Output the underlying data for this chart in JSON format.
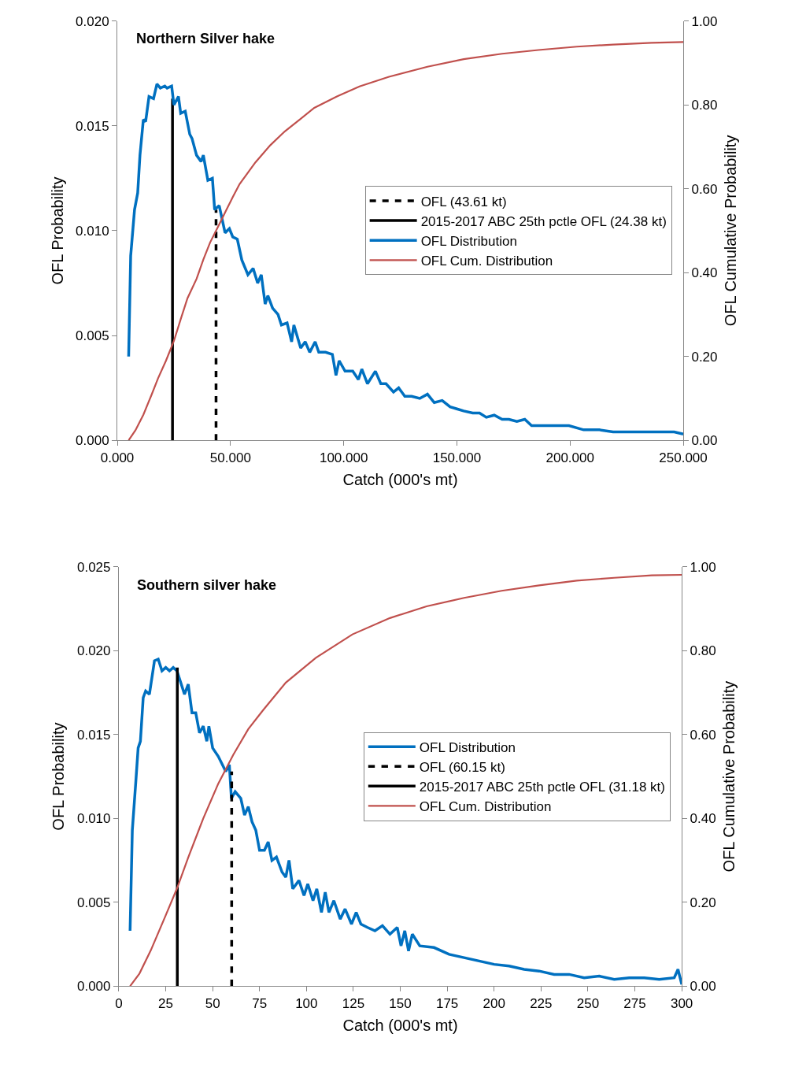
{
  "chart_data": [
    {
      "type": "line",
      "title": "Northern Silver hake",
      "xlabel": "Catch (000's mt)",
      "ylabel": "OFL Probability",
      "y2label": "OFL Cumulative Probability",
      "legend": "right",
      "marker": "none",
      "xlim": [
        0,
        250
      ],
      "xticks": [
        {
          "value": 0,
          "label": "0.000"
        },
        {
          "value": 50,
          "label": "50.000"
        },
        {
          "value": 100,
          "label": "100.000"
        },
        {
          "value": 150,
          "label": "150.000"
        },
        {
          "value": 200,
          "label": "200.000"
        },
        {
          "value": 250,
          "label": "250.000"
        }
      ],
      "ylim": [
        0,
        0.02
      ],
      "yticks": [
        {
          "value": 0,
          "label": "0.000"
        },
        {
          "value": 0.005,
          "label": "0.005"
        },
        {
          "value": 0.01,
          "label": "0.010"
        },
        {
          "value": 0.015,
          "label": "0.015"
        },
        {
          "value": 0.02,
          "label": "0.020"
        }
      ],
      "y2lim": [
        0,
        1
      ],
      "y2ticks": [
        {
          "value": 0,
          "label": "0.00"
        },
        {
          "value": 0.2,
          "label": "0.20"
        },
        {
          "value": 0.4,
          "label": "0.40"
        },
        {
          "value": 0.6,
          "label": "0.60"
        },
        {
          "value": 0.8,
          "label": "0.80"
        },
        {
          "value": 1,
          "label": "1.00"
        }
      ],
      "series": [
        {
          "name": "OFL (43.61 kt)",
          "color": "#000000",
          "line_style": "dashed",
          "x": [
            43.61,
            43.61
          ],
          "values": [
            0,
            0.011
          ]
        },
        {
          "name": "2015-2017 ABC 25th pctle OFL (24.38 kt)",
          "color": "#000000",
          "line_style": "solid",
          "x": [
            24.38,
            24.38
          ],
          "values": [
            0,
            0.0163
          ]
        },
        {
          "name": "OFL Distribution",
          "color": "#0070c0",
          "line_style": "solid",
          "x": [
            5,
            5.9,
            7.6,
            9,
            10,
            11.5,
            12.5,
            14,
            16,
            17.5,
            19,
            21,
            22,
            24,
            25,
            27,
            28,
            30,
            32,
            33,
            35,
            37,
            38,
            40,
            42,
            43,
            45,
            47.6,
            49.5,
            51,
            53,
            55,
            57.7,
            60,
            62,
            63.6,
            65.3,
            66.5,
            68.6,
            71,
            72.5,
            75,
            77,
            78,
            81,
            83,
            85,
            87.4,
            89,
            92,
            95,
            96.6,
            98,
            100.6,
            104,
            106.5,
            108,
            110.5,
            114,
            116.4,
            118.7,
            122,
            124.3,
            127,
            130,
            133.6,
            137,
            140,
            143.5,
            147,
            150,
            153,
            157,
            160,
            163,
            166.5,
            170,
            173,
            176.5,
            180,
            183,
            186,
            193,
            199.5,
            206,
            213,
            219,
            226,
            232.5,
            239,
            246,
            250
          ],
          "values": [
            0.004,
            0.0088,
            0.011,
            0.0118,
            0.0136,
            0.0153,
            0.0152,
            0.0164,
            0.0163,
            0.017,
            0.0168,
            0.0169,
            0.0168,
            0.0169,
            0.016,
            0.0164,
            0.0156,
            0.0157,
            0.0146,
            0.0144,
            0.0136,
            0.0133,
            0.0136,
            0.0124,
            0.0125,
            0.011,
            0.0112,
            0.0099,
            0.0101,
            0.0097,
            0.0096,
            0.0086,
            0.0079,
            0.0082,
            0.0075,
            0.0079,
            0.0065,
            0.0069,
            0.0063,
            0.006,
            0.0055,
            0.0056,
            0.0047,
            0.0055,
            0.0044,
            0.0047,
            0.0042,
            0.0047,
            0.0042,
            0.0042,
            0.0041,
            0.0031,
            0.0038,
            0.0033,
            0.0033,
            0.0029,
            0.0034,
            0.0027,
            0.0033,
            0.0027,
            0.0027,
            0.0023,
            0.0025,
            0.0021,
            0.0021,
            0.002,
            0.0022,
            0.0018,
            0.0019,
            0.0016,
            0.0015,
            0.0014,
            0.0013,
            0.0013,
            0.0011,
            0.0012,
            0.001,
            0.001,
            0.0009,
            0.001,
            0.0007,
            0.0007,
            0.0007,
            0.0007,
            0.0005,
            0.0005,
            0.0004,
            0.0004,
            0.0004,
            0.0004,
            0.0004,
            0.0003
          ]
        },
        {
          "name": "OFL Cum. Distribution",
          "color": "#c0504d",
          "line_style": "solid",
          "axis": "y2",
          "x": [
            5,
            8,
            11.5,
            15,
            18,
            21.5,
            25,
            28,
            31,
            35,
            38,
            41,
            45,
            48,
            51,
            54,
            61,
            67.6,
            74,
            81,
            87,
            97,
            107,
            120,
            137,
            153,
            170,
            186,
            203,
            219,
            236,
            250
          ],
          "values": [
            0,
            0.024,
            0.061,
            0.107,
            0.148,
            0.19,
            0.237,
            0.289,
            0.339,
            0.385,
            0.431,
            0.472,
            0.515,
            0.548,
            0.58,
            0.611,
            0.663,
            0.704,
            0.737,
            0.767,
            0.793,
            0.82,
            0.844,
            0.867,
            0.891,
            0.909,
            0.922,
            0.931,
            0.939,
            0.944,
            0.948,
            0.95
          ]
        }
      ]
    },
    {
      "type": "line",
      "title": "Southern silver hake",
      "xlabel": "Catch (000's mt)",
      "ylabel": "OFL Probability",
      "y2label": "OFL Cumulative Probability",
      "legend": "right",
      "marker": "none",
      "xlim": [
        0,
        300
      ],
      "xticks": [
        0,
        25,
        50,
        75,
        100,
        125,
        150,
        175,
        200,
        225,
        250,
        275,
        300
      ],
      "ylim": [
        0,
        0.025
      ],
      "yticks": [
        {
          "value": 0,
          "label": "0.000"
        },
        {
          "value": 0.005,
          "label": "0.005"
        },
        {
          "value": 0.01,
          "label": "0.010"
        },
        {
          "value": 0.015,
          "label": "0.015"
        },
        {
          "value": 0.02,
          "label": "0.020"
        },
        {
          "value": 0.025,
          "label": "0.025"
        }
      ],
      "y2lim": [
        0,
        1
      ],
      "y2ticks": [
        {
          "value": 0,
          "label": "0.00"
        },
        {
          "value": 0.2,
          "label": "0.20"
        },
        {
          "value": 0.4,
          "label": "0.40"
        },
        {
          "value": 0.6,
          "label": "0.60"
        },
        {
          "value": 0.8,
          "label": "0.80"
        },
        {
          "value": 1,
          "label": "1.00"
        }
      ],
      "series": [
        {
          "name": "OFL Distribution",
          "color": "#0070c0",
          "line_style": "solid",
          "x": [
            6,
            7.2,
            9,
            10.3,
            11.5,
            13,
            14.3,
            16.3,
            19,
            21,
            23,
            25,
            27,
            29,
            31,
            33,
            35,
            37,
            39,
            41,
            43,
            45,
            46.9,
            48,
            50,
            53,
            57,
            58.9,
            60,
            62,
            65,
            67,
            69,
            71,
            73,
            75,
            77.6,
            79.6,
            81.6,
            84,
            87,
            89,
            90.7,
            92.7,
            96,
            98.7,
            100.7,
            103.5,
            105.5,
            108,
            110,
            112,
            114.6,
            118,
            120.6,
            124,
            126.5,
            129,
            132.5,
            136.5,
            140.5,
            144.5,
            148.4,
            150.4,
            152.4,
            154.4,
            156.4,
            160.4,
            168,
            176,
            184,
            192,
            200,
            208,
            216,
            224,
            232,
            240,
            248,
            256,
            264,
            272,
            280,
            288,
            296,
            298,
            300
          ],
          "values": [
            0.0033,
            0.0093,
            0.0121,
            0.0142,
            0.0146,
            0.0172,
            0.0176,
            0.0174,
            0.0194,
            0.0195,
            0.0188,
            0.019,
            0.0188,
            0.019,
            0.0188,
            0.0181,
            0.0174,
            0.018,
            0.0163,
            0.0163,
            0.0151,
            0.0155,
            0.0146,
            0.0155,
            0.0142,
            0.0137,
            0.0128,
            0.0132,
            0.0112,
            0.0116,
            0.0112,
            0.0102,
            0.0107,
            0.0098,
            0.0093,
            0.0081,
            0.0081,
            0.0086,
            0.0075,
            0.0077,
            0.0068,
            0.0065,
            0.0075,
            0.0058,
            0.0063,
            0.0054,
            0.0061,
            0.0051,
            0.0058,
            0.0044,
            0.0056,
            0.0044,
            0.0051,
            0.004,
            0.0046,
            0.0037,
            0.0044,
            0.0037,
            0.0035,
            0.0033,
            0.0036,
            0.0031,
            0.0035,
            0.0024,
            0.0033,
            0.0021,
            0.0031,
            0.0024,
            0.0023,
            0.0019,
            0.0017,
            0.0015,
            0.0013,
            0.0012,
            0.001,
            0.0009,
            0.0007,
            0.0007,
            0.0005,
            0.0006,
            0.0004,
            0.0005,
            0.0005,
            0.0004,
            0.0005,
            0.001,
            0.0001
          ]
        },
        {
          "name": "OFL (60.15 kt)",
          "color": "#000000",
          "line_style": "dashed",
          "x": [
            60.15,
            60.15
          ],
          "values": [
            0,
            0.0128
          ]
        },
        {
          "name": "2015-2017 ABC 25th pctle OFL (31.18 kt)",
          "color": "#000000",
          "line_style": "solid",
          "x": [
            31.18,
            31.18
          ],
          "values": [
            0,
            0.019
          ]
        },
        {
          "name": "OFL Cum. Distribution",
          "color": "#c0504d",
          "line_style": "solid",
          "axis": "y2",
          "x": [
            6,
            11,
            17,
            25,
            31,
            37,
            45,
            53,
            61,
            69,
            77,
            89,
            105,
            124.5,
            144.5,
            164,
            184,
            204,
            224,
            244,
            264,
            284,
            300
          ],
          "values": [
            0,
            0.03,
            0.085,
            0.169,
            0.233,
            0.307,
            0.4,
            0.483,
            0.552,
            0.613,
            0.659,
            0.724,
            0.783,
            0.839,
            0.878,
            0.906,
            0.926,
            0.943,
            0.956,
            0.967,
            0.974,
            0.98,
            0.981
          ]
        }
      ]
    }
  ]
}
